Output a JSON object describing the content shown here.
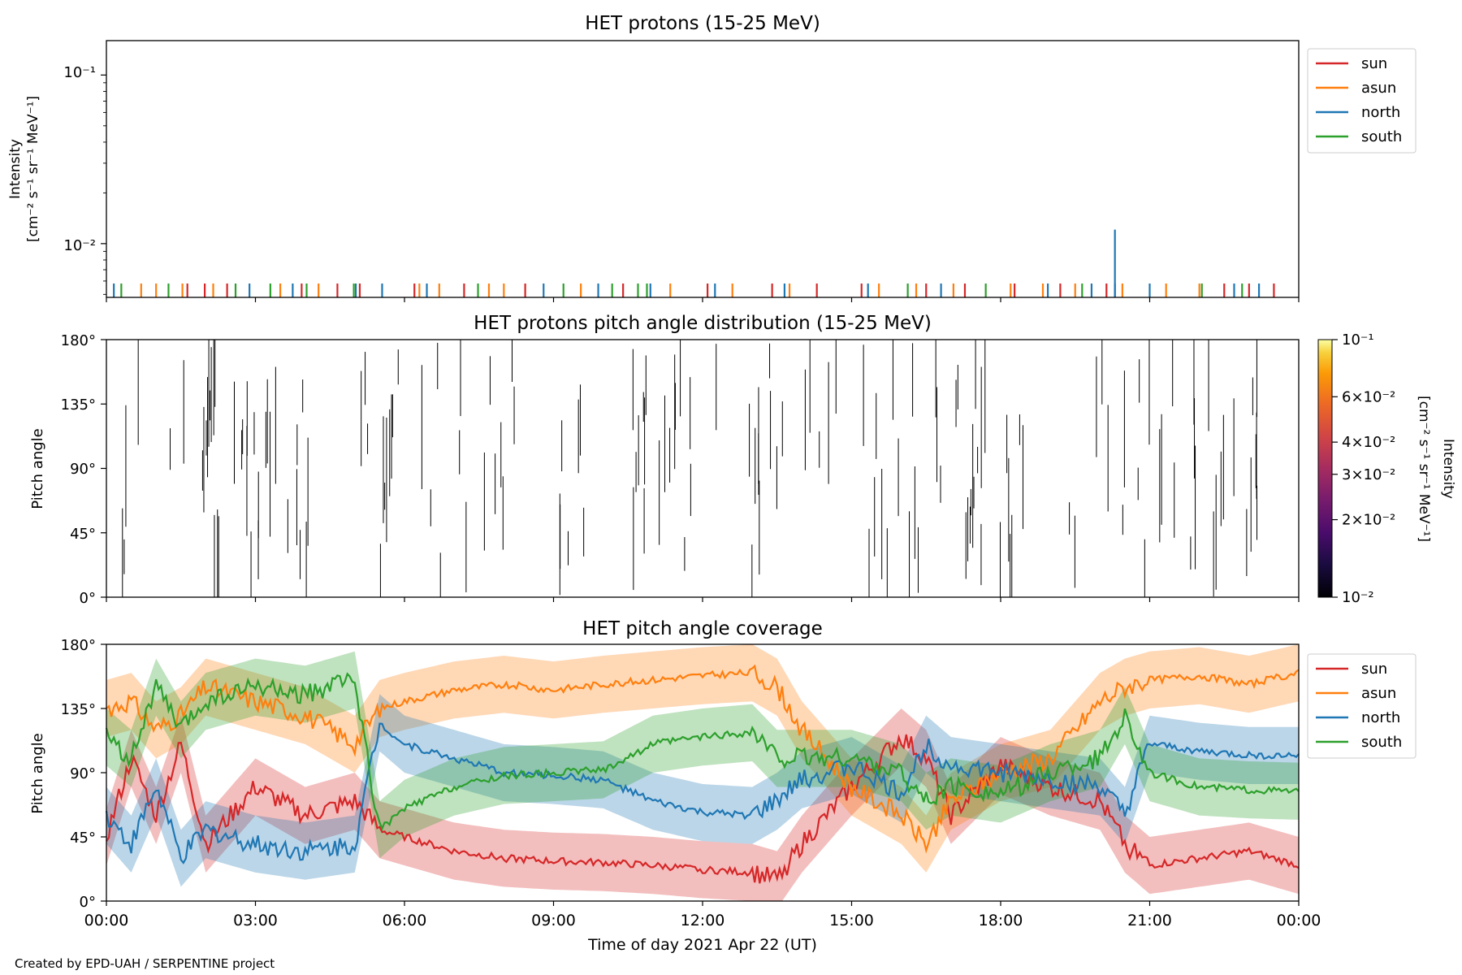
{
  "footer": "Created by EPD-UAH / SERPENTINE project",
  "xaxis": {
    "label": "Time of day 2021 Apr 22 (UT)",
    "ticks": [
      "00:00",
      "03:00",
      "06:00",
      "09:00",
      "12:00",
      "15:00",
      "18:00",
      "21:00",
      "00:00"
    ],
    "range_hours": [
      0,
      24
    ]
  },
  "colors": {
    "sun": "#d62728",
    "asun": "#ff7f0e",
    "north": "#1f77b4",
    "south": "#2ca02c"
  },
  "chart_data": [
    {
      "type": "line",
      "title": "HET protons (15-25 MeV)",
      "ylabel": [
        "Intensity",
        "[cm⁻² s⁻¹ sr⁻¹ MeV⁻¹]"
      ],
      "yscale": "log",
      "ylim": [
        0.0048,
        0.16
      ],
      "yticks": [
        "10⁻¹",
        "10⁻²"
      ],
      "legend": {
        "placement": "upper right outside",
        "entries": [
          "sun",
          "asun",
          "north",
          "south"
        ]
      },
      "series": [
        {
          "name": "sun",
          "spikes_hours": [
            1.63,
            1.98,
            2.43,
            3.93,
            4.65,
            5.1,
            6.2,
            7.2,
            8.43,
            10.4,
            12.1,
            13.4,
            14.3,
            15.2,
            16.5,
            17.28,
            18.28,
            19.2,
            20.13,
            22.5,
            23.0,
            23.5
          ],
          "spike_value": 0.0058
        },
        {
          "name": "asun",
          "spikes_hours": [
            0.7,
            1.0,
            1.53,
            2.15,
            3.5,
            4.27,
            6.3,
            6.7,
            7.7,
            8.0,
            9.55,
            11.35,
            12.6,
            13.75,
            15.55,
            16.3,
            17.05,
            18.2,
            18.85,
            19.5,
            20.45,
            21.33,
            22.0
          ],
          "spike_value": 0.0058
        },
        {
          "name": "north",
          "spikes_hours": [
            0.15,
            2.88,
            3.75,
            5.02,
            5.55,
            6.45,
            8.8,
            9.9,
            10.95,
            12.25,
            13.65,
            15.33,
            16.8,
            18.95,
            19.83,
            20.3,
            21.0,
            22.7,
            23.2
          ],
          "spike_value": 0.0058,
          "peak_hour": 20.3,
          "peak_value": 0.0121
        },
        {
          "name": "south",
          "spikes_hours": [
            0.3,
            1.25,
            2.6,
            3.3,
            4.03,
            4.98,
            7.48,
            9.2,
            10.18,
            10.7,
            10.88,
            16.13,
            17.7,
            19.64,
            22.05,
            22.86
          ],
          "spike_value": 0.0058
        }
      ]
    },
    {
      "type": "heatmap",
      "title": "HET protons pitch angle distribution (15-25 MeV)",
      "ylabel": "Pitch angle",
      "ylim": [
        0,
        180
      ],
      "yticks": [
        "0°",
        "45°",
        "90°",
        "135°",
        "180°"
      ],
      "colorbar": {
        "label": [
          "Intensity",
          "[cm⁻² s⁻¹ sr⁻¹ MeV⁻¹]"
        ],
        "scale": "log",
        "range": [
          0.01,
          0.1
        ],
        "ticks": [
          {
            "value": 0.1,
            "label": "10⁻¹"
          },
          {
            "value": 0.06,
            "label": "6×10⁻²"
          },
          {
            "value": 0.04,
            "label": "4×10⁻²"
          },
          {
            "value": 0.03,
            "label": "3×10⁻²"
          },
          {
            "value": 0.02,
            "label": "2×10⁻²"
          },
          {
            "value": 0.01,
            "label": "10⁻²"
          }
        ]
      },
      "segment_count": 170,
      "segment_seed": 1234
    },
    {
      "type": "line",
      "title": "HET pitch angle coverage",
      "ylabel": "Pitch angle",
      "ylim": [
        0,
        180
      ],
      "yticks": [
        "0°",
        "45°",
        "90°",
        "135°",
        "180°"
      ],
      "band_halfwidth": 20,
      "legend": {
        "placement": "upper right outside",
        "entries": [
          "sun",
          "asun",
          "north",
          "south"
        ]
      },
      "series": [
        {
          "name": "sun",
          "x": [
            0,
            0.5,
            1,
            1.5,
            2,
            3,
            4,
            5,
            5.5,
            6,
            7,
            8,
            9,
            10,
            11,
            12,
            13,
            13.5,
            14,
            15,
            16,
            16.5,
            17,
            18,
            19,
            20,
            20.5,
            21,
            22,
            23,
            24
          ],
          "y": [
            45,
            100,
            60,
            110,
            40,
            80,
            60,
            70,
            50,
            45,
            35,
            30,
            28,
            27,
            25,
            22,
            20,
            15,
            40,
            80,
            115,
            100,
            60,
            95,
            80,
            70,
            40,
            25,
            30,
            35,
            25
          ]
        },
        {
          "name": "asun",
          "x": [
            0,
            0.5,
            1,
            1.5,
            2,
            3,
            4,
            5,
            5.5,
            6,
            7,
            8,
            9,
            10,
            11,
            12,
            13,
            13.5,
            14,
            15,
            16,
            16.5,
            17,
            18,
            19,
            20,
            20.5,
            21,
            22,
            23,
            24
          ],
          "y": [
            135,
            140,
            120,
            130,
            150,
            140,
            130,
            110,
            135,
            140,
            148,
            152,
            148,
            152,
            155,
            158,
            160,
            150,
            120,
            80,
            60,
            40,
            70,
            90,
            100,
            140,
            150,
            155,
            158,
            152,
            160
          ]
        },
        {
          "name": "north",
          "x": [
            0,
            0.5,
            1,
            1.5,
            2,
            3,
            4,
            5,
            5.5,
            6,
            7,
            8,
            9,
            10,
            11,
            12,
            13,
            13.5,
            14,
            15,
            16,
            16.5,
            17,
            18,
            19,
            20,
            20.5,
            21,
            22,
            23,
            24
          ],
          "y": [
            60,
            40,
            80,
            30,
            50,
            40,
            35,
            40,
            125,
            110,
            100,
            90,
            88,
            85,
            70,
            62,
            60,
            70,
            85,
            95,
            75,
            110,
            95,
            90,
            85,
            80,
            60,
            110,
            105,
            102,
            102
          ]
        },
        {
          "name": "south",
          "x": [
            0,
            0.5,
            1,
            1.5,
            2,
            3,
            4,
            5,
            5.5,
            6,
            7,
            8,
            9,
            10,
            11,
            12,
            13,
            13.5,
            14,
            15,
            16,
            16.5,
            17,
            18,
            19,
            20,
            20.5,
            21,
            22,
            23,
            24
          ],
          "y": [
            115,
            100,
            150,
            120,
            140,
            150,
            145,
            155,
            50,
            65,
            80,
            88,
            90,
            92,
            110,
            115,
            118,
            100,
            100,
            100,
            90,
            70,
            80,
            75,
            90,
            100,
            130,
            90,
            80,
            78,
            77
          ]
        }
      ]
    }
  ]
}
